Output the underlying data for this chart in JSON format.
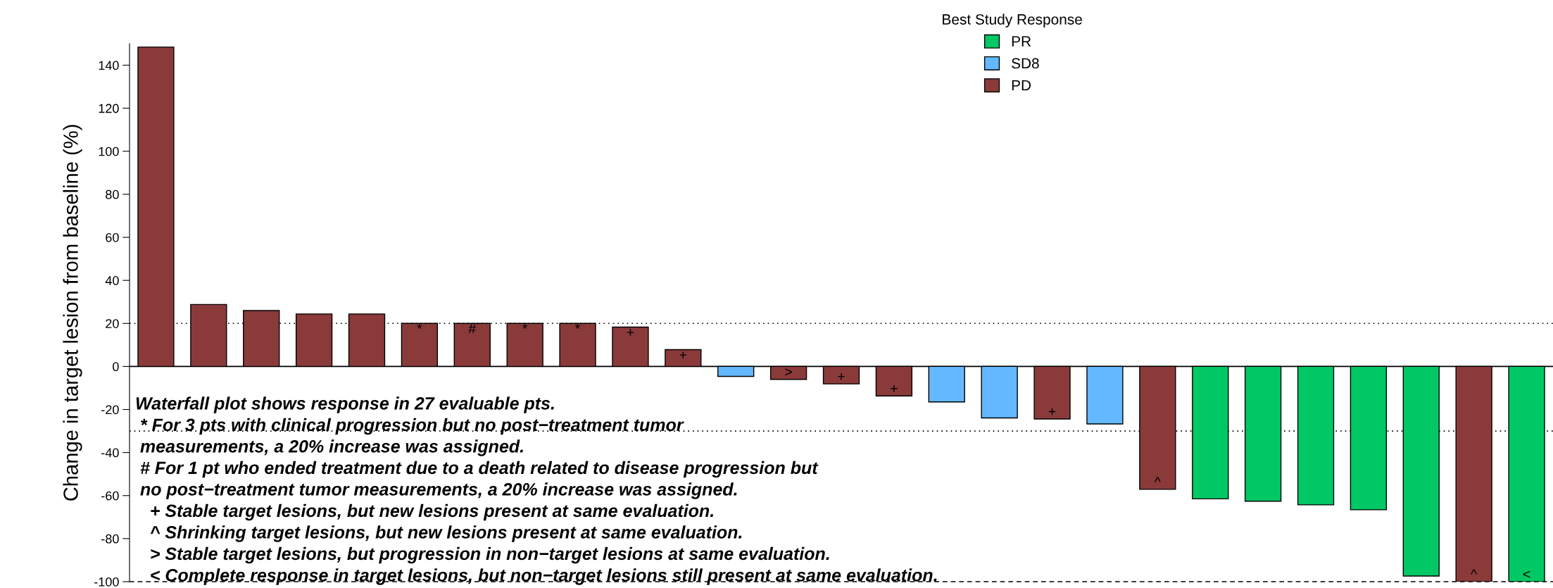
{
  "chart_data": {
    "type": "bar",
    "ylabel": "Change in target lesion from baseline (%)",
    "legend_title": "Best Study Response",
    "legend": "top",
    "categories": [
      null,
      null,
      null,
      null,
      null,
      null,
      null,
      null,
      null,
      null,
      null,
      null,
      null,
      null,
      null,
      null,
      null,
      null,
      null,
      null,
      null,
      null,
      null,
      null,
      null,
      null,
      null
    ],
    "series": [
      {
        "name": "PR",
        "color": "#00c864",
        "values": [
          null,
          null,
          null,
          null,
          null,
          null,
          null,
          null,
          null,
          null,
          null,
          null,
          null,
          null,
          null,
          null,
          null,
          null,
          null,
          null,
          -61.5,
          -62.6,
          -64.3,
          -66.6,
          -97.4,
          null,
          -100
        ]
      },
      {
        "name": "SD8",
        "color": "#63b8ff",
        "values": [
          null,
          null,
          null,
          null,
          null,
          null,
          null,
          null,
          null,
          null,
          null,
          -4.6,
          null,
          null,
          null,
          -16.5,
          -23.9,
          null,
          -26.7,
          null,
          null,
          null,
          null,
          null,
          null,
          null,
          null
        ]
      },
      {
        "name": "PD",
        "color": "#8b3a3a",
        "values": [
          148.4,
          28.8,
          26.0,
          24.4,
          24.4,
          20,
          20,
          20,
          20,
          18.3,
          7.8,
          null,
          -6.0,
          -8.1,
          -13.7,
          null,
          null,
          -24.4,
          null,
          -57.1,
          null,
          null,
          null,
          null,
          null,
          -100,
          null
        ]
      }
    ],
    "value_labels": [
      null,
      null,
      null,
      null,
      null,
      "*",
      "#",
      "*",
      "*",
      "+",
      "+",
      null,
      ">",
      "+",
      "+",
      null,
      null,
      "+",
      null,
      "^",
      null,
      null,
      null,
      null,
      null,
      "^",
      "<"
    ],
    "ylim": [
      -100,
      150
    ],
    "yticks": [
      -100,
      -80,
      -60,
      -40,
      -20,
      0,
      20,
      40,
      60,
      80,
      100,
      120,
      140
    ],
    "ref_lines": [
      {
        "axis": "y",
        "value": 0,
        "line_style": "solid"
      },
      {
        "axis": "y",
        "value": 20,
        "line_style": "dotted"
      },
      {
        "axis": "y",
        "value": -30,
        "line_style": "dotted"
      },
      {
        "axis": "y",
        "value": -100,
        "line_style": "dashed"
      }
    ],
    "grid": false,
    "annotations": [
      "Waterfall plot shows response in 27 evaluable pts.",
      " * For 3 pts with clinical progression but no post−treatment tumor",
      " measurements, a 20% increase was assigned.",
      " # For 1 pt who ended treatment due to a death related to disease progression but",
      " no post−treatment tumor measurements, a 20% increase was assigned.",
      "   + Stable target lesions, but new lesions present at same evaluation.",
      "   ^ Shrinking target lesions, but new lesions present at same evaluation.",
      "   > Stable target lesions, but progression in non−target lesions at same evaluation.",
      "   < Complete response in target lesions, but non−target lesions still present at same evaluation."
    ]
  }
}
